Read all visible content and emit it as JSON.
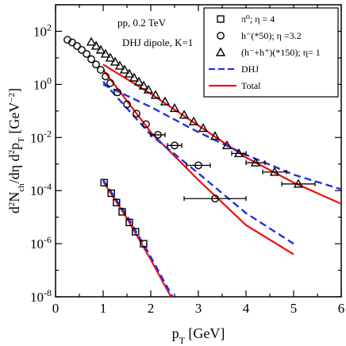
{
  "chart_data": {
    "type": "scatter",
    "xlabel": "p_T [GeV]",
    "ylabel": "d²N_ch/dη d²p_T [GeV⁻²]",
    "xlim": [
      0,
      6
    ],
    "ylim_log10": [
      -8,
      3
    ],
    "yscale": "log",
    "x_ticks": [
      "0",
      "1",
      "2",
      "3",
      "4",
      "5",
      "6"
    ],
    "y_ticks": [
      {
        "base": "10",
        "exp": "-8",
        "value": -8
      },
      {
        "base": "10",
        "exp": "-6",
        "value": -6
      },
      {
        "base": "10",
        "exp": "-4",
        "value": -4
      },
      {
        "base": "10",
        "exp": "-2",
        "value": -2
      },
      {
        "base": "10",
        "exp": "0",
        "value": 0
      },
      {
        "base": "10",
        "exp": "2",
        "value": 2
      }
    ],
    "annotations": [
      "pp, 0.2 TeV",
      "DHJ dipole, K=1"
    ],
    "legend_position": "top-right",
    "legend": [
      {
        "marker": "square",
        "label": "π⁰;  η = 4"
      },
      {
        "marker": "circle",
        "label": "h⁻(*50);  η =3.2"
      },
      {
        "marker": "triangle",
        "label": "(h⁻+h⁺)(*150); η= 1"
      },
      {
        "line": "dashed",
        "label": "DHJ"
      },
      {
        "line": "solid",
        "label": "Total"
      }
    ],
    "colors": {
      "dhj": "#2233dd",
      "total": "#ee1111",
      "data": "#000000"
    },
    "series": [
      {
        "marker": "square",
        "points": [
          {
            "x": 1.02,
            "logy": -3.7,
            "xerr": 0.0
          },
          {
            "x": 1.17,
            "logy": -4.1,
            "xerr": 0.0
          },
          {
            "x": 1.28,
            "logy": -4.45,
            "xerr": 0.0
          },
          {
            "x": 1.4,
            "logy": -4.8,
            "xerr": 0.0
          },
          {
            "x": 1.55,
            "logy": -5.2,
            "xerr": 0.0
          },
          {
            "x": 1.68,
            "logy": -5.55,
            "xerr": 0.0
          },
          {
            "x": 1.85,
            "logy": -6.0,
            "xerr": 0.0
          }
        ],
        "dhj": [
          [
            1.0,
            -3.6
          ],
          [
            1.5,
            -4.95
          ],
          [
            2.0,
            -6.5
          ],
          [
            2.55,
            -8.3
          ]
        ],
        "total": [
          [
            1.0,
            -3.65
          ],
          [
            1.5,
            -5.05
          ],
          [
            2.0,
            -6.6
          ],
          [
            2.5,
            -8.25
          ]
        ]
      },
      {
        "marker": "circle",
        "points": [
          {
            "x": 0.25,
            "logy": 1.68,
            "xerr": 0.0
          },
          {
            "x": 0.35,
            "logy": 1.58,
            "xerr": 0.0
          },
          {
            "x": 0.45,
            "logy": 1.45,
            "xerr": 0.0
          },
          {
            "x": 0.55,
            "logy": 1.3,
            "xerr": 0.0
          },
          {
            "x": 0.65,
            "logy": 1.15,
            "xerr": 0.0
          },
          {
            "x": 0.75,
            "logy": 0.95,
            "xerr": 0.0
          },
          {
            "x": 0.85,
            "logy": 0.75,
            "xerr": 0.0
          },
          {
            "x": 0.95,
            "logy": 0.55,
            "xerr": 0.0
          },
          {
            "x": 1.05,
            "logy": 0.3,
            "xerr": 0.0
          },
          {
            "x": 1.15,
            "logy": 0.05,
            "xerr": 0.0
          },
          {
            "x": 1.3,
            "logy": -0.3,
            "xerr": 0.0
          },
          {
            "x": 1.5,
            "logy": -0.75,
            "xerr": 0.0
          },
          {
            "x": 1.7,
            "logy": -1.1,
            "xerr": 0.0
          },
          {
            "x": 1.9,
            "logy": -1.5,
            "xerr": 0.0
          },
          {
            "x": 2.15,
            "logy": -1.9,
            "xerr": 0.15
          },
          {
            "x": 2.5,
            "logy": -2.3,
            "xerr": 0.15
          },
          {
            "x": 3.0,
            "logy": -3.05,
            "xerr": 0.25
          },
          {
            "x": 3.35,
            "logy": -4.3,
            "xerr": 0.65
          }
        ],
        "dhj": [
          [
            1.0,
            0.1
          ],
          [
            2.0,
            -1.9
          ],
          [
            3.0,
            -3.35
          ],
          [
            4.0,
            -4.85
          ],
          [
            5.0,
            -6.0
          ]
        ],
        "total": [
          [
            1.0,
            0.55
          ],
          [
            2.0,
            -1.8
          ],
          [
            3.0,
            -3.6
          ],
          [
            4.0,
            -5.3
          ],
          [
            5.0,
            -6.4
          ]
        ]
      },
      {
        "marker": "triangle",
        "points": [
          {
            "x": 0.75,
            "logy": 1.6,
            "xerr": 0.0
          },
          {
            "x": 0.85,
            "logy": 1.45,
            "xerr": 0.0
          },
          {
            "x": 0.95,
            "logy": 1.3,
            "xerr": 0.0
          },
          {
            "x": 1.05,
            "logy": 1.15,
            "xerr": 0.0
          },
          {
            "x": 1.15,
            "logy": 1.0,
            "xerr": 0.0
          },
          {
            "x": 1.25,
            "logy": 0.85,
            "xerr": 0.0
          },
          {
            "x": 1.35,
            "logy": 0.7,
            "xerr": 0.0
          },
          {
            "x": 1.45,
            "logy": 0.55,
            "xerr": 0.0
          },
          {
            "x": 1.55,
            "logy": 0.4,
            "xerr": 0.0
          },
          {
            "x": 1.65,
            "logy": 0.25,
            "xerr": 0.0
          },
          {
            "x": 1.75,
            "logy": 0.1,
            "xerr": 0.0
          },
          {
            "x": 1.85,
            "logy": -0.05,
            "xerr": 0.0
          },
          {
            "x": 1.95,
            "logy": -0.2,
            "xerr": 0.0
          },
          {
            "x": 2.1,
            "logy": -0.4,
            "xerr": 0.0
          },
          {
            "x": 2.3,
            "logy": -0.65,
            "xerr": 0.0
          },
          {
            "x": 2.5,
            "logy": -0.9,
            "xerr": 0.0
          },
          {
            "x": 2.7,
            "logy": -1.15,
            "xerr": 0.0
          },
          {
            "x": 2.9,
            "logy": -1.4,
            "xerr": 0.0
          },
          {
            "x": 3.1,
            "logy": -1.65,
            "xerr": 0.0
          },
          {
            "x": 3.35,
            "logy": -1.95,
            "xerr": 0.0
          },
          {
            "x": 3.6,
            "logy": -2.3,
            "xerr": 0.0
          },
          {
            "x": 3.85,
            "logy": -2.6,
            "xerr": 0.15
          },
          {
            "x": 4.2,
            "logy": -2.95,
            "xerr": 0.2
          },
          {
            "x": 4.6,
            "logy": -3.3,
            "xerr": 0.25
          },
          {
            "x": 5.1,
            "logy": -3.75,
            "xerr": 0.35
          }
        ],
        "dhj": [
          [
            1.0,
            0.0
          ],
          [
            2.0,
            -0.85
          ],
          [
            3.0,
            -1.8
          ],
          [
            4.0,
            -2.65
          ],
          [
            5.0,
            -3.4
          ],
          [
            6.0,
            -3.95
          ]
        ],
        "total": [
          [
            1.0,
            0.75
          ],
          [
            2.0,
            -0.35
          ],
          [
            3.0,
            -1.55
          ],
          [
            4.0,
            -2.75
          ],
          [
            5.0,
            -3.7
          ],
          [
            6.0,
            -4.5
          ]
        ]
      }
    ]
  }
}
